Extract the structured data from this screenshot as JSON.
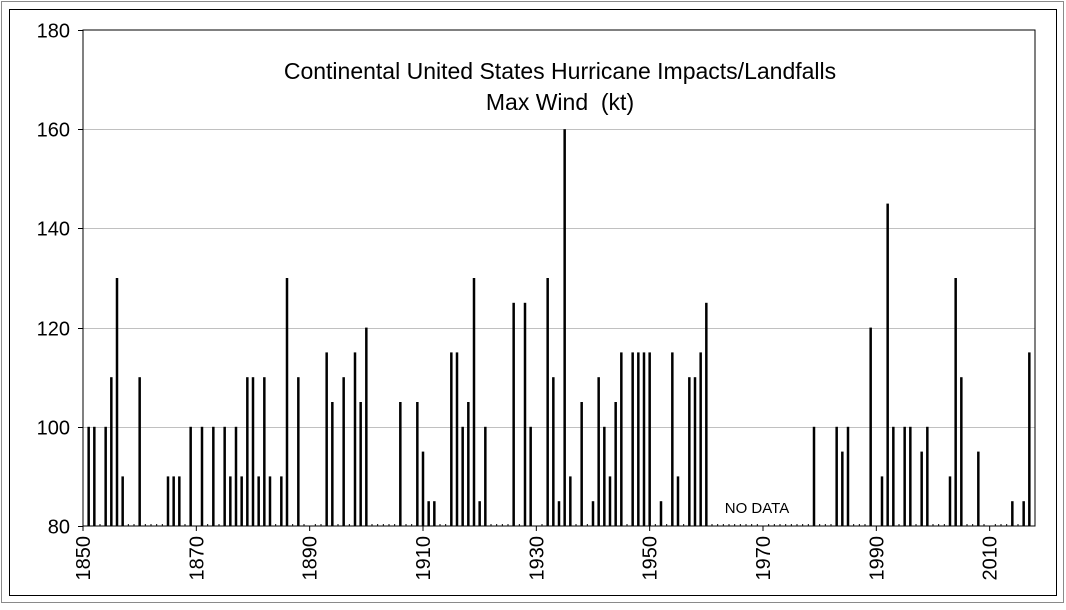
{
  "chart_data": {
    "type": "bar",
    "title": "Continental United States Hurricane Impacts/Landfalls",
    "subtitle": "Max Wind  (kt)",
    "annotation": "NO DATA",
    "xlabel": "",
    "ylabel": "",
    "xlim": [
      1850,
      2018
    ],
    "ylim": [
      80,
      180
    ],
    "x_ticks": [
      1850,
      1870,
      1890,
      1910,
      1930,
      1950,
      1970,
      1990,
      2010
    ],
    "y_ticks": [
      80,
      100,
      120,
      140,
      160,
      180
    ],
    "grid": true,
    "bar_color": "#000000",
    "grid_color": "#c0c0c0",
    "x": [
      1851,
      1852,
      1854,
      1855,
      1856,
      1857,
      1860,
      1865,
      1866,
      1867,
      1869,
      1871,
      1873,
      1875,
      1876,
      1877,
      1878,
      1879,
      1880,
      1881,
      1882,
      1883,
      1885,
      1886,
      1888,
      1893,
      1894,
      1896,
      1898,
      1899,
      1900,
      1906,
      1909,
      1910,
      1911,
      1912,
      1915,
      1916,
      1917,
      1918,
      1919,
      1920,
      1921,
      1926,
      1928,
      1929,
      1932,
      1933,
      1934,
      1935,
      1936,
      1938,
      1940,
      1941,
      1942,
      1943,
      1944,
      1945,
      1947,
      1948,
      1949,
      1950,
      1952,
      1954,
      1955,
      1957,
      1958,
      1959,
      1960,
      1979,
      1983,
      1984,
      1985,
      1989,
      1991,
      1992,
      1993,
      1995,
      1996,
      1998,
      1999,
      2003,
      2004,
      2005,
      2008,
      2014,
      2016,
      2017
    ],
    "values": [
      100,
      100,
      100,
      110,
      130,
      90,
      110,
      90,
      90,
      90,
      100,
      100,
      100,
      100,
      90,
      100,
      90,
      110,
      110,
      90,
      110,
      90,
      90,
      130,
      110,
      115,
      105,
      110,
      115,
      105,
      120,
      105,
      105,
      95,
      85,
      85,
      115,
      115,
      100,
      105,
      130,
      85,
      100,
      125,
      125,
      100,
      130,
      110,
      85,
      160,
      90,
      105,
      85,
      110,
      100,
      90,
      105,
      115,
      115,
      115,
      115,
      115,
      85,
      115,
      90,
      110,
      110,
      115,
      125,
      100,
      100,
      95,
      100,
      120,
      90,
      145,
      100,
      100,
      100,
      95,
      100,
      90,
      130,
      110,
      95,
      85,
      85,
      115
    ]
  }
}
